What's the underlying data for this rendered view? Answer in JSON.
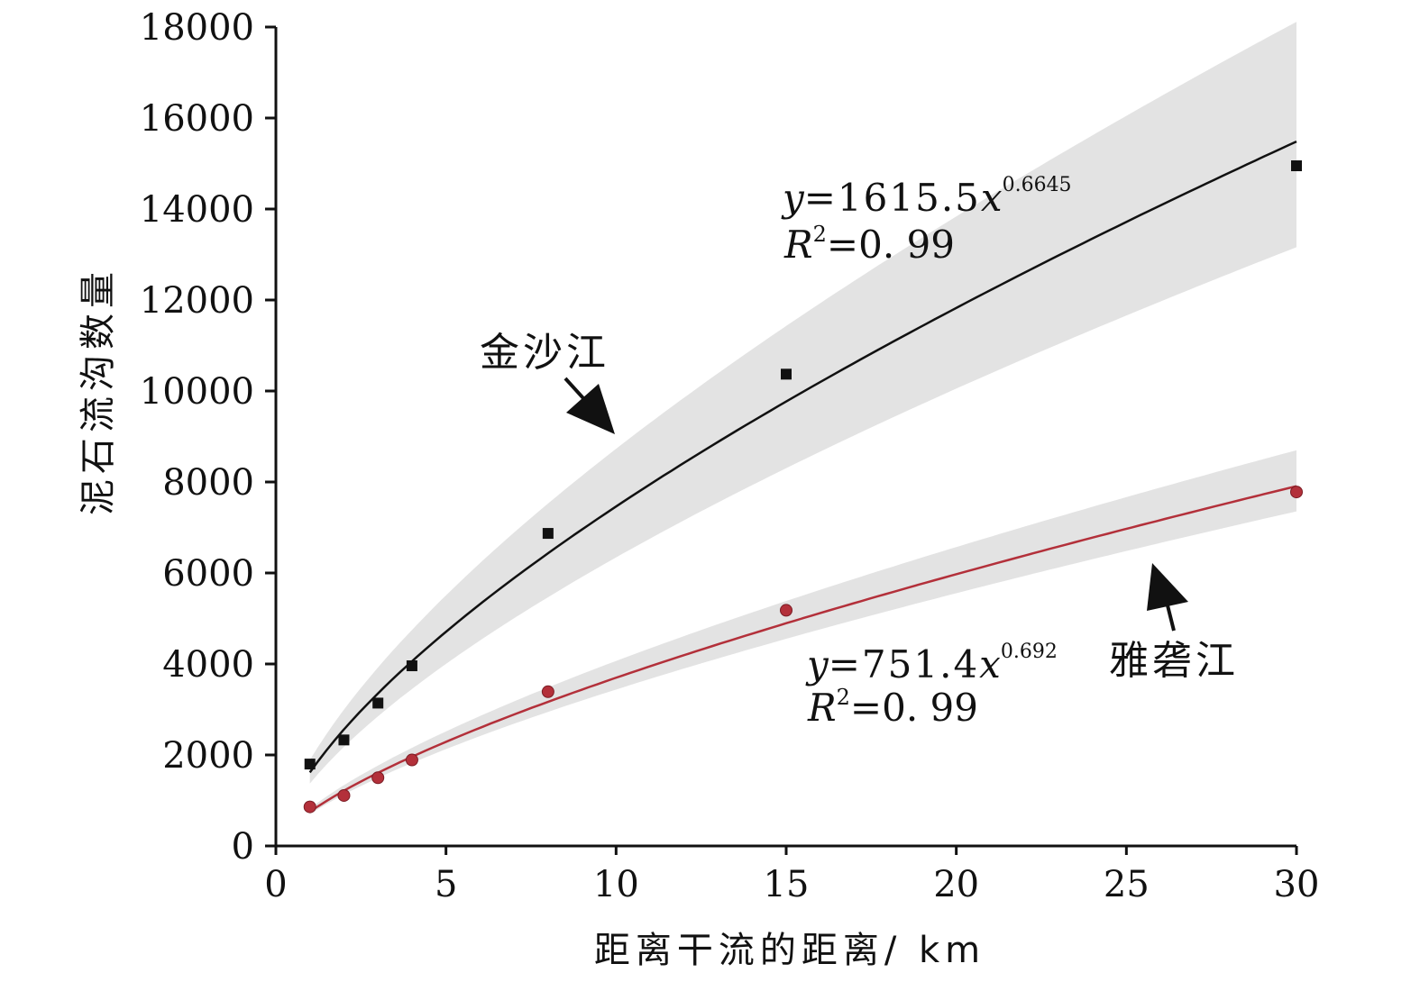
{
  "chart_data": {
    "type": "scatter",
    "xlabel": "距离干流的距离/ km",
    "ylabel": "泥石流沟数量",
    "xlim": [
      0,
      30
    ],
    "ylim": [
      0,
      18000
    ],
    "xticks": [
      0,
      5,
      10,
      15,
      20,
      25,
      30
    ],
    "yticks": [
      0,
      2000,
      4000,
      6000,
      8000,
      10000,
      12000,
      14000,
      16000,
      18000
    ],
    "grid": false,
    "series": [
      {
        "name": "金沙江",
        "marker": "square",
        "color": "#111111",
        "band_color": "#e3e3e3",
        "x": [
          1,
          2,
          3,
          4,
          8,
          15,
          30
        ],
        "y": [
          1800,
          2330,
          3140,
          3960,
          6870,
          10370,
          14950
        ],
        "fit": {
          "a": 1615.5,
          "b": 0.6645
        },
        "band_lower_factor": 0.85,
        "band_upper_factor": 1.17,
        "equation": {
          "lhs": "y",
          "mid": "=1615.5",
          "var": "x",
          "exp": "0.6645",
          "r_label": "R",
          "r_sup": "2",
          "r_value": "=0. 99"
        }
      },
      {
        "name": "雅砻江",
        "marker": "circle",
        "color": "#b3303a",
        "band_color": "#e3e3e3",
        "x": [
          1,
          2,
          3,
          4,
          8,
          15,
          30
        ],
        "y": [
          860,
          1110,
          1500,
          1890,
          3390,
          5180,
          7780
        ],
        "fit": {
          "a": 751.4,
          "b": 0.692
        },
        "band_lower_factor": 0.93,
        "band_upper_factor": 1.1,
        "equation": {
          "lhs": "y",
          "mid": "=751.4",
          "var": "x",
          "exp": "0.692",
          "r_label": "R",
          "r_sup": "2",
          "r_value": "=0. 99"
        }
      }
    ]
  }
}
